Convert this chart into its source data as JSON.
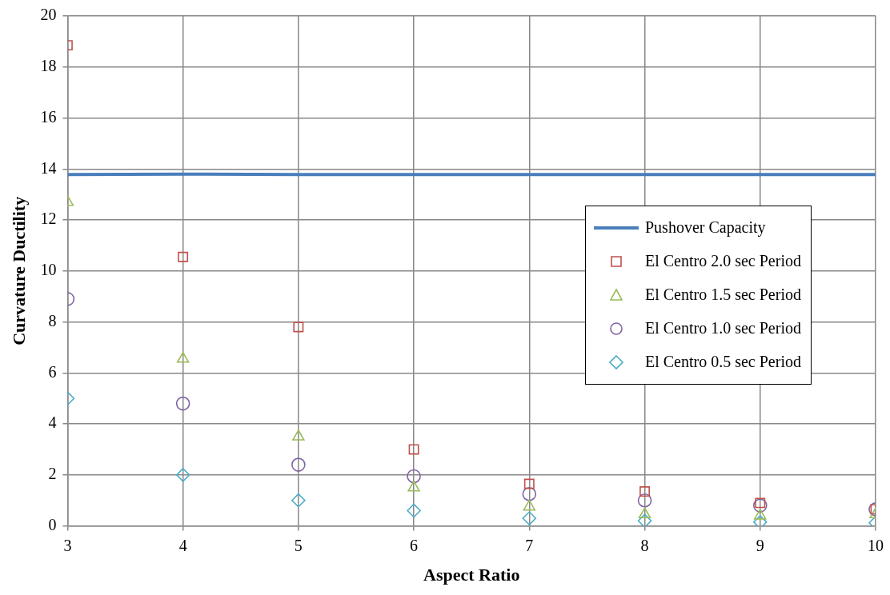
{
  "chart_data": {
    "type": "scatter",
    "xlabel": "Aspect Ratio",
    "ylabel": "Curvature Ductility",
    "x": [
      3,
      4,
      5,
      6,
      7,
      8,
      9,
      10
    ],
    "series": [
      {
        "name": "Pushover Capacity",
        "type": "line",
        "color": "#4a7ebb",
        "marker": "none",
        "values": [
          13.78,
          13.8,
          13.78,
          13.78,
          13.78,
          13.78,
          13.78,
          13.78
        ]
      },
      {
        "name": "El Centro 2.0 sec Period",
        "color": "#c0504d",
        "marker": "square",
        "values": [
          18.85,
          10.55,
          7.8,
          3.0,
          1.65,
          1.35,
          0.9,
          0.65
        ]
      },
      {
        "name": "El Centro 1.5 sec Period",
        "color": "#9bbb59",
        "marker": "triangle",
        "values": [
          12.7,
          6.55,
          3.5,
          1.5,
          0.75,
          0.45,
          0.4,
          0.45
        ]
      },
      {
        "name": "El Centro 1.0 sec Period",
        "color": "#8064a2",
        "marker": "circle",
        "values": [
          8.9,
          4.8,
          2.4,
          1.95,
          1.25,
          1.0,
          0.8,
          0.65
        ]
      },
      {
        "name": "El Centro 0.5 sec Period",
        "color": "#4bacc6",
        "marker": "diamond",
        "values": [
          5.0,
          2.0,
          1.0,
          0.6,
          0.3,
          0.2,
          0.15,
          0.12
        ]
      }
    ],
    "xlim": [
      3,
      10
    ],
    "xticks": [
      3,
      4,
      5,
      6,
      7,
      8,
      9,
      10
    ],
    "ylim": [
      0,
      20
    ],
    "yticks": [
      0,
      2,
      4,
      6,
      8,
      10,
      12,
      14,
      16,
      18,
      20
    ],
    "grid": true,
    "legend": "right"
  }
}
